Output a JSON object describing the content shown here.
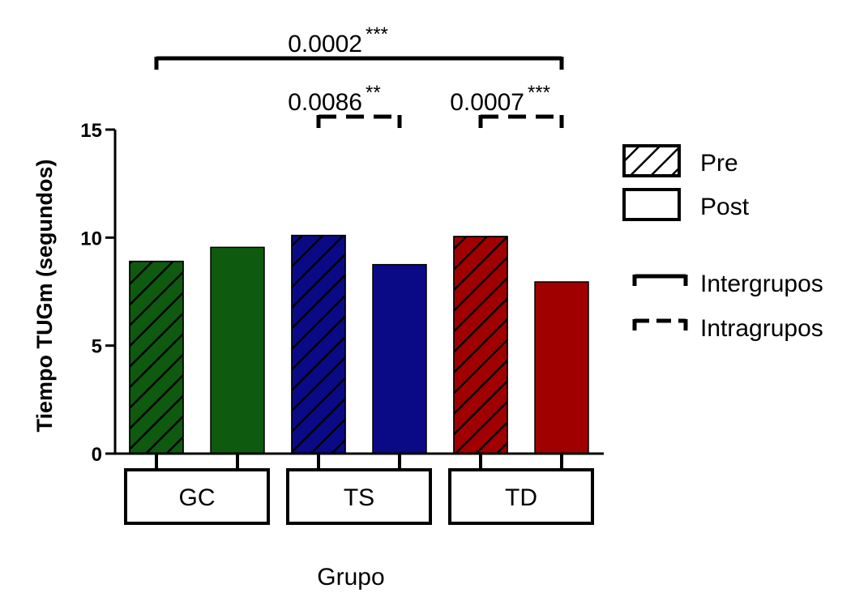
{
  "chart_data": {
    "type": "bar",
    "title": "",
    "xlabel": "Grupo",
    "ylabel": "Tiempo TUGm (segundos)",
    "ylim": [
      0,
      15
    ],
    "yticks": [
      0,
      5,
      10,
      15
    ],
    "grid": false,
    "categories": [
      "GC",
      "TS",
      "TD"
    ],
    "category_colors": [
      "#0e5a0e",
      "#0a0a86",
      "#a00000"
    ],
    "series": [
      {
        "name": "Pre",
        "pattern": "hatched",
        "values": [
          8.9,
          10.1,
          10.05
        ]
      },
      {
        "name": "Post",
        "pattern": "solid",
        "values": [
          9.55,
          8.75,
          7.95
        ]
      }
    ],
    "legend": {
      "placement": "right",
      "series": [
        "Pre",
        "Post"
      ],
      "lines": [
        {
          "label": "Intergrupos",
          "style": "solid"
        },
        {
          "label": "Intragrupos",
          "style": "dashed"
        }
      ]
    },
    "annotations": [
      {
        "text": "0.0002",
        "stars": "***",
        "style": "solid",
        "from_bar": 0,
        "to_bar": 5,
        "level": 2
      },
      {
        "text": "0.0086",
        "stars": "**",
        "style": "dashed",
        "from_bar": 2,
        "to_bar": 3,
        "level": 1
      },
      {
        "text": "0.0007",
        "stars": "***",
        "style": "dashed",
        "from_bar": 4,
        "to_bar": 5,
        "level": 1
      }
    ]
  }
}
